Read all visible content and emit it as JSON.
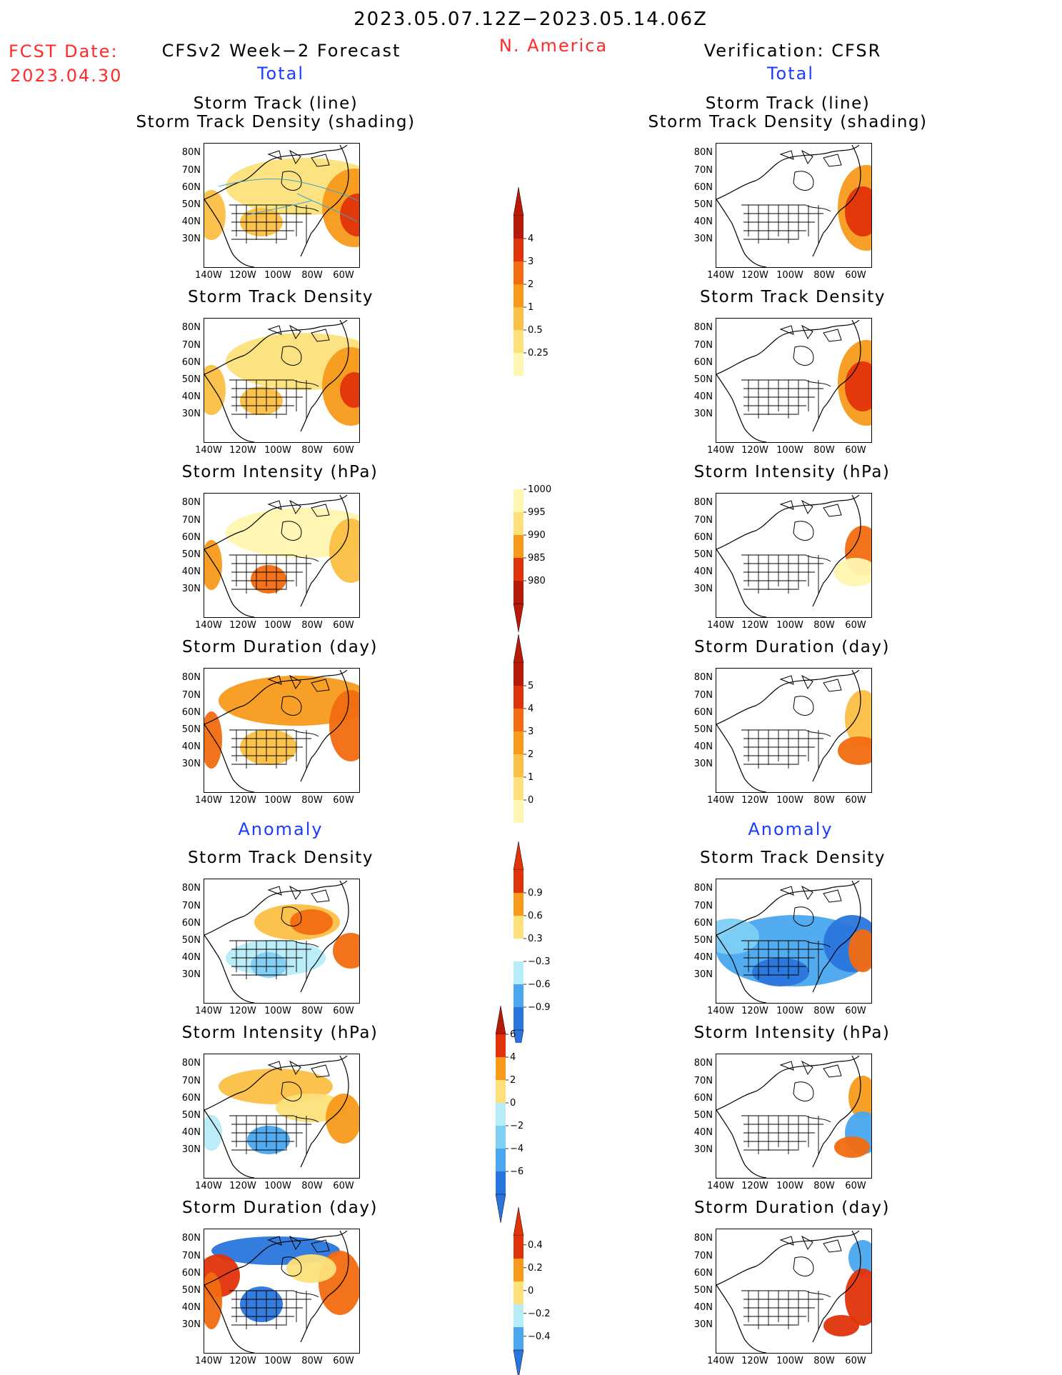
{
  "header": {
    "period": "2023.05.07.12Z−2023.05.14.06Z",
    "region": "N. America",
    "fcst_date_label": "FCST Date:",
    "fcst_date_value": "2023.04.30",
    "left_model": "CFSv2 Week−2 Forecast",
    "right_model": "Verification: CFSR"
  },
  "sections": {
    "total": "Total",
    "anomaly": "Anomaly"
  },
  "panels": {
    "track_line": "Storm Track (line)",
    "track_shading": "Storm Track Density (shading)",
    "density": "Storm Track Density",
    "intensity": "Storm Intensity (hPa)",
    "duration": "Storm Duration (day)"
  },
  "axes": {
    "lat": [
      "80N",
      "70N",
      "60N",
      "50N",
      "40N",
      "30N"
    ],
    "lon": [
      "140W",
      "120W",
      "100W",
      "80W",
      "60W"
    ]
  },
  "colorbars": {
    "density_total": [
      "0.25",
      "0.5",
      "1",
      "2",
      "3",
      "4"
    ],
    "intensity_total": [
      "1000",
      "995",
      "990",
      "985",
      "980"
    ],
    "duration_total": [
      "0",
      "1",
      "2",
      "3",
      "4",
      "5"
    ],
    "density_anom": [
      "0.9",
      "0.6",
      "0.3",
      "−0.3",
      "−0.6",
      "−0.9"
    ],
    "intensity_anom": [
      "6",
      "4",
      "2",
      "0",
      "−2",
      "−4",
      "−6"
    ],
    "duration_anom": [
      "0.4",
      "0.2",
      "0",
      "−0.2",
      "−0.4"
    ]
  },
  "colors": {
    "warm": [
      "#fff6b0",
      "#fde07a",
      "#fbbf45",
      "#f79a1a",
      "#f26b10",
      "#e0330a",
      "#b81a08"
    ],
    "cool": [
      "#b6ecf8",
      "#7ecff4",
      "#4aa6ee",
      "#2a75dd",
      "#1e52c4"
    ],
    "title_red": "#ff2a2a",
    "title_blue": "#1a3cff"
  }
}
